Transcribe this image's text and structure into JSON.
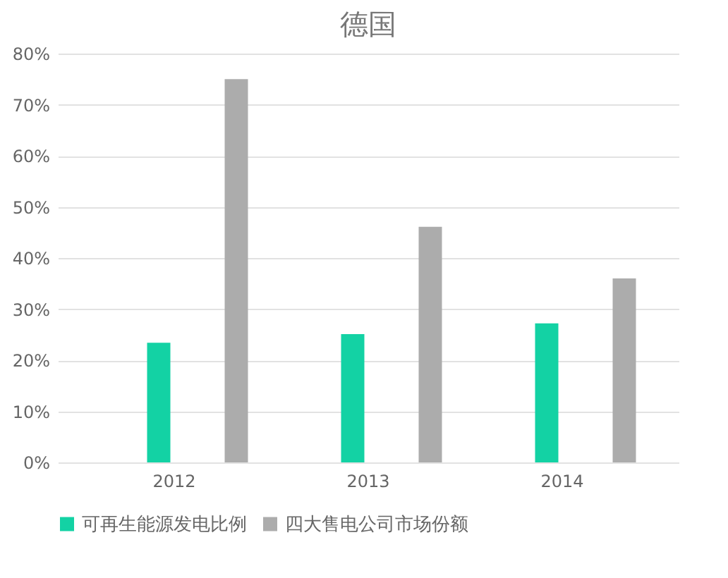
{
  "chart_data": {
    "type": "bar",
    "title": "德国",
    "categories": [
      "2012",
      "2013",
      "2014"
    ],
    "series": [
      {
        "name": "可再生能源发电比例",
        "color": "#13d2a4",
        "values": [
          23.4,
          25.1,
          27.2
        ]
      },
      {
        "name": "四大售电公司市场份额",
        "color": "#acacac",
        "values": [
          75.0,
          46.1,
          36.0
        ]
      }
    ],
    "ylim": [
      0,
      80
    ],
    "yticks": [
      {
        "value": 0,
        "label": "0%"
      },
      {
        "value": 10,
        "label": "10%"
      },
      {
        "value": 20,
        "label": "20%"
      },
      {
        "value": 30,
        "label": "30%"
      },
      {
        "value": 40,
        "label": "40%"
      },
      {
        "value": 50,
        "label": "50%"
      },
      {
        "value": 60,
        "label": "60%"
      },
      {
        "value": 70,
        "label": "70%"
      },
      {
        "value": 80,
        "label": "80%"
      }
    ],
    "grid": "y",
    "legend": "bottom"
  }
}
